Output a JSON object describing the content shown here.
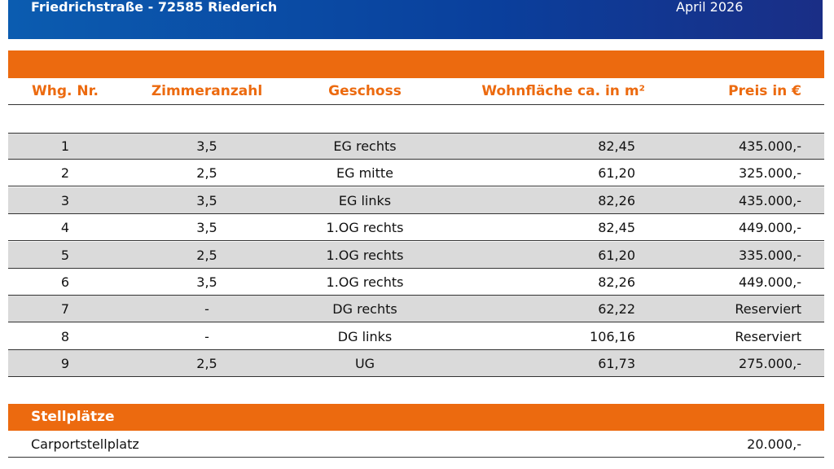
{
  "header": {
    "address": "Friedrichstraße - 72585 Riederich",
    "date": "April 2026"
  },
  "table": {
    "columns": [
      "Whg. Nr.",
      "Zimmeranzahl",
      "Geschoss",
      "Wohnfläche ca. in m²",
      "Preis in €"
    ],
    "rows": [
      [
        "1",
        "3,5",
        "EG rechts",
        "82,45",
        "435.000,-"
      ],
      [
        "2",
        "2,5",
        "EG mitte",
        "61,20",
        "325.000,-"
      ],
      [
        "3",
        "3,5",
        "EG links",
        "82,26",
        "435.000,-"
      ],
      [
        "4",
        "3,5",
        "1.OG rechts",
        "82,45",
        "449.000,-"
      ],
      [
        "5",
        "2,5",
        "1.OG rechts",
        "61,20",
        "335.000,-"
      ],
      [
        "6",
        "3,5",
        "1.OG rechts",
        "82,26",
        "449.000,-"
      ],
      [
        "7",
        "-",
        "DG rechts",
        "62,22",
        "Reserviert"
      ],
      [
        "8",
        "-",
        "DG links",
        "106,16",
        "Reserviert"
      ],
      [
        "9",
        "2,5",
        "UG",
        "61,73",
        "275.000,-"
      ]
    ]
  },
  "parking": {
    "title": "Stellplätze",
    "rows": [
      [
        "Carportstellplatz",
        "20.000,-"
      ]
    ]
  }
}
